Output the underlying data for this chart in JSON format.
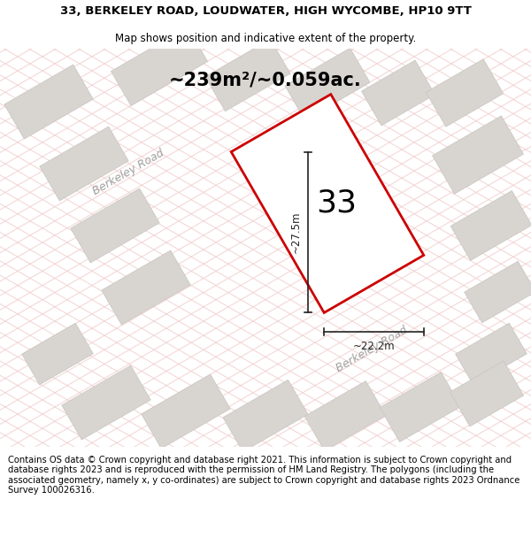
{
  "title_line1": "33, BERKELEY ROAD, LOUDWATER, HIGH WYCOMBE, HP10 9TT",
  "title_line2": "Map shows position and indicative extent of the property.",
  "area_text": "~239m²/~0.059ac.",
  "house_number": "33",
  "dim_width": "~22.2m",
  "dim_height": "~27.5m",
  "footer": "Contains OS data © Crown copyright and database right 2021. This information is subject to Crown copyright and database rights 2023 and is reproduced with the permission of HM Land Registry. The polygons (including the associated geometry, namely x, y co-ordinates) are subject to Crown copyright and database rights 2023 Ordnance Survey 100026316.",
  "bg_color": "#ffffff",
  "map_bg": "#f7f5f2",
  "road_line_color": "#f0c8c8",
  "plot_outline_color": "#cc0000",
  "building_fill": "#d8d5d0",
  "building_stroke": "#c8c5c0",
  "road_fill": "#e8e4de",
  "road_label_color": "#a0a0a0",
  "dim_line_color": "#222222",
  "text_color": "#000000",
  "footer_fontsize": 7.2,
  "title_fontsize": 9.5,
  "subtitle_fontsize": 8.5,
  "area_fontsize": 15,
  "housenumber_fontsize": 26,
  "dim_fontsize": 8.5,
  "road_label_fontsize": 9
}
